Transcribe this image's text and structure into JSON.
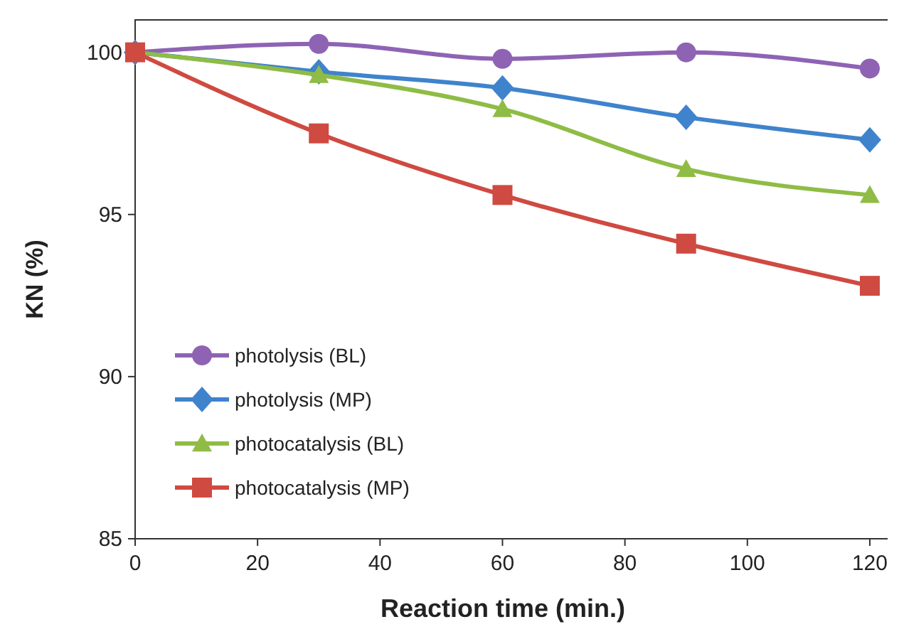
{
  "chart_data": {
    "type": "line",
    "xlabel": "Reaction time (min.)",
    "ylabel": "KN (%)",
    "x": [
      0,
      30,
      60,
      90,
      120
    ],
    "xlim": [
      0,
      125
    ],
    "xticks": [
      0,
      20,
      40,
      60,
      80,
      100,
      120
    ],
    "ylim": [
      85,
      101
    ],
    "yticks": [
      85,
      90,
      95,
      100
    ],
    "grid": false,
    "legend": "bottom left",
    "line_style": "solid",
    "series": [
      {
        "name": "photolysis (BL)",
        "color": "#8e63b4",
        "marker": "circle",
        "values": [
          100,
          100.26,
          99.8,
          100,
          99.5
        ]
      },
      {
        "name": "photolysis (MP)",
        "color": "#3f83cc",
        "marker": "diamond",
        "values": [
          100,
          99.4,
          98.9,
          98.0,
          97.3
        ]
      },
      {
        "name": "photocatalysis (BL)",
        "color": "#8fbc45",
        "marker": "triangle",
        "values": [
          100,
          99.3,
          98.25,
          96.4,
          95.6
        ]
      },
      {
        "name": "photocatalysis (MP)",
        "color": "#cf4a41",
        "marker": "square",
        "values": [
          100,
          97.5,
          95.6,
          94.1,
          92.8
        ]
      }
    ]
  }
}
